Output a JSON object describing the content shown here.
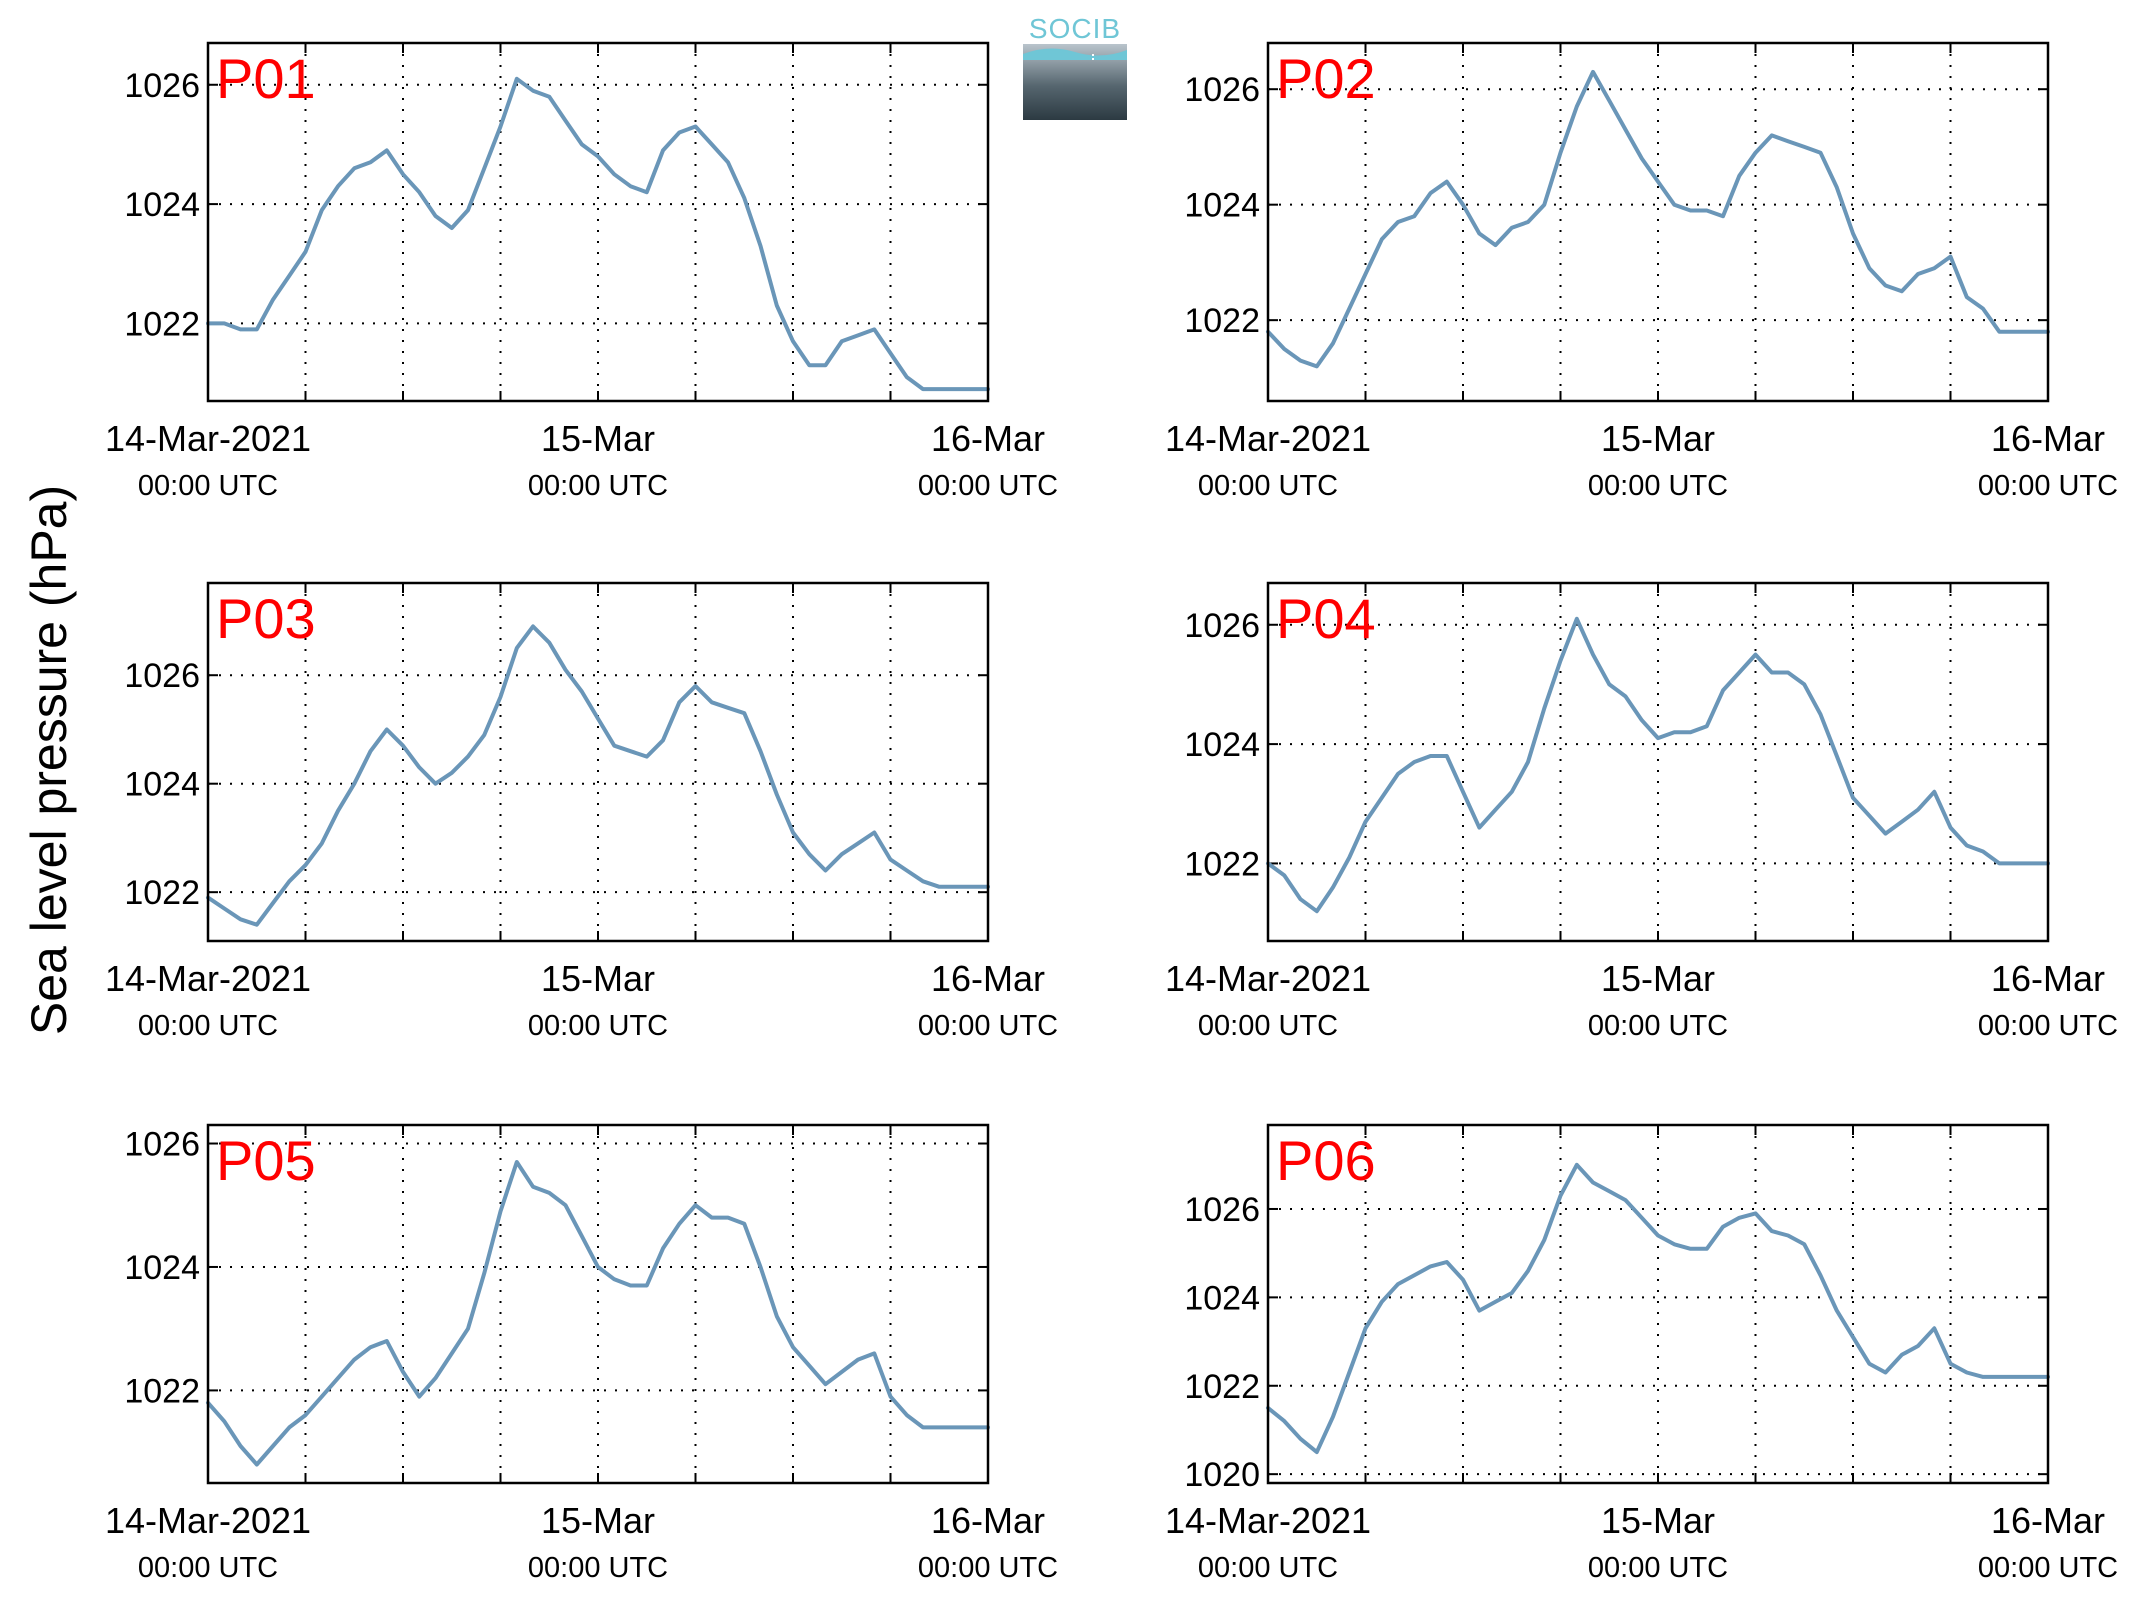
{
  "figure": {
    "ylabel": "Sea level pressure (hPa)",
    "logo_text": "SOCIB"
  },
  "chart_data": [
    {
      "type": "line",
      "panel_label": "P01",
      "x_ticks": [
        {
          "top": "14-Mar-2021",
          "bottom": "00:00 UTC"
        },
        {
          "top": "15-Mar",
          "bottom": "00:00 UTC"
        },
        {
          "top": "16-Mar",
          "bottom": "00:00 UTC"
        }
      ],
      "yticks": [
        1022,
        1024,
        1026
      ],
      "xlim": [
        0,
        48
      ],
      "ylim": [
        1020.7,
        1026.7
      ],
      "grid": true,
      "series": [
        {
          "color": "#6a96b8",
          "x": [
            0,
            1,
            2,
            3,
            4,
            5,
            6,
            7,
            8,
            9,
            10,
            11,
            12,
            13,
            14,
            15,
            16,
            17,
            18,
            19,
            20,
            21,
            22,
            23,
            24,
            25,
            26,
            27,
            28,
            29,
            30,
            31,
            32,
            33,
            34,
            35,
            36,
            37,
            38,
            39,
            40,
            41,
            42,
            43,
            44,
            45,
            46,
            47,
            48
          ],
          "y": [
            1022.0,
            1022.0,
            1021.9,
            1021.9,
            1022.4,
            1022.8,
            1023.2,
            1023.9,
            1024.3,
            1024.6,
            1024.7,
            1024.9,
            1024.5,
            1024.2,
            1023.8,
            1023.6,
            1023.9,
            1024.6,
            1025.3,
            1026.1,
            1025.9,
            1025.8,
            1025.4,
            1025.0,
            1024.8,
            1024.5,
            1024.3,
            1024.2,
            1024.9,
            1025.2,
            1025.3,
            1025.0,
            1024.7,
            1024.1,
            1023.3,
            1022.3,
            1021.7,
            1021.3,
            1021.3,
            1021.7,
            1021.8,
            1021.9,
            1021.5,
            1021.1,
            1020.9,
            1020.9,
            1020.9,
            1020.9,
            1020.9
          ]
        }
      ]
    },
    {
      "type": "line",
      "panel_label": "P02",
      "x_ticks": [
        {
          "top": "14-Mar-2021",
          "bottom": "00:00 UTC"
        },
        {
          "top": "15-Mar",
          "bottom": "00:00 UTC"
        },
        {
          "top": "16-Mar",
          "bottom": "00:00 UTC"
        }
      ],
      "yticks": [
        1022,
        1024,
        1026
      ],
      "xlim": [
        0,
        48
      ],
      "ylim": [
        1020.6,
        1026.8
      ],
      "grid": true,
      "series": [
        {
          "color": "#6a96b8",
          "x": [
            0,
            1,
            2,
            3,
            4,
            5,
            6,
            7,
            8,
            9,
            10,
            11,
            12,
            13,
            14,
            15,
            16,
            17,
            18,
            19,
            20,
            21,
            22,
            23,
            24,
            25,
            26,
            27,
            28,
            29,
            30,
            31,
            32,
            33,
            34,
            35,
            36,
            37,
            38,
            39,
            40,
            41,
            42,
            43,
            44,
            45,
            46,
            47,
            48
          ],
          "y": [
            1021.8,
            1021.5,
            1021.3,
            1021.2,
            1021.6,
            1022.2,
            1022.8,
            1023.4,
            1023.7,
            1023.8,
            1024.2,
            1024.4,
            1024.0,
            1023.5,
            1023.3,
            1023.6,
            1023.7,
            1024.0,
            1024.9,
            1025.7,
            1026.3,
            1025.8,
            1025.3,
            1024.8,
            1024.4,
            1024.0,
            1023.9,
            1023.9,
            1023.8,
            1024.5,
            1024.9,
            1025.2,
            1025.1,
            1025.0,
            1024.9,
            1024.3,
            1023.5,
            1022.9,
            1022.6,
            1022.5,
            1022.8,
            1022.9,
            1023.1,
            1022.4,
            1022.2,
            1021.8,
            1021.8,
            1021.8,
            1021.8
          ]
        }
      ]
    },
    {
      "type": "line",
      "panel_label": "P03",
      "x_ticks": [
        {
          "top": "14-Mar-2021",
          "bottom": "00:00 UTC"
        },
        {
          "top": "15-Mar",
          "bottom": "00:00 UTC"
        },
        {
          "top": "16-Mar",
          "bottom": "00:00 UTC"
        }
      ],
      "yticks": [
        1022,
        1024,
        1026
      ],
      "xlim": [
        0,
        48
      ],
      "ylim": [
        1021.1,
        1027.7
      ],
      "grid": true,
      "series": [
        {
          "color": "#6a96b8",
          "x": [
            0,
            1,
            2,
            3,
            4,
            5,
            6,
            7,
            8,
            9,
            10,
            11,
            12,
            13,
            14,
            15,
            16,
            17,
            18,
            19,
            20,
            21,
            22,
            23,
            24,
            25,
            26,
            27,
            28,
            29,
            30,
            31,
            32,
            33,
            34,
            35,
            36,
            37,
            38,
            39,
            40,
            41,
            42,
            43,
            44,
            45,
            46,
            47,
            48
          ],
          "y": [
            1021.9,
            1021.7,
            1021.5,
            1021.4,
            1021.8,
            1022.2,
            1022.5,
            1022.9,
            1023.5,
            1024.0,
            1024.6,
            1025.0,
            1024.7,
            1024.3,
            1024.0,
            1024.2,
            1024.5,
            1024.9,
            1025.6,
            1026.5,
            1026.9,
            1026.6,
            1026.1,
            1025.7,
            1025.2,
            1024.7,
            1024.6,
            1024.5,
            1024.8,
            1025.5,
            1025.8,
            1025.5,
            1025.4,
            1025.3,
            1024.6,
            1023.8,
            1023.1,
            1022.7,
            1022.4,
            1022.7,
            1022.9,
            1023.1,
            1022.6,
            1022.4,
            1022.2,
            1022.1,
            1022.1,
            1022.1,
            1022.1
          ]
        }
      ]
    },
    {
      "type": "line",
      "panel_label": "P04",
      "x_ticks": [
        {
          "top": "14-Mar-2021",
          "bottom": "00:00 UTC"
        },
        {
          "top": "15-Mar",
          "bottom": "00:00 UTC"
        },
        {
          "top": "16-Mar",
          "bottom": "00:00 UTC"
        }
      ],
      "yticks": [
        1022,
        1024,
        1026
      ],
      "xlim": [
        0,
        48
      ],
      "ylim": [
        1020.7,
        1026.7
      ],
      "grid": true,
      "series": [
        {
          "color": "#6a96b8",
          "x": [
            0,
            1,
            2,
            3,
            4,
            5,
            6,
            7,
            8,
            9,
            10,
            11,
            12,
            13,
            14,
            15,
            16,
            17,
            18,
            19,
            20,
            21,
            22,
            23,
            24,
            25,
            26,
            27,
            28,
            29,
            30,
            31,
            32,
            33,
            34,
            35,
            36,
            37,
            38,
            39,
            40,
            41,
            42,
            43,
            44,
            45,
            46,
            47,
            48
          ],
          "y": [
            1022.0,
            1021.8,
            1021.4,
            1021.2,
            1021.6,
            1022.1,
            1022.7,
            1023.1,
            1023.5,
            1023.7,
            1023.8,
            1023.8,
            1023.2,
            1022.6,
            1022.9,
            1023.2,
            1023.7,
            1024.6,
            1025.4,
            1026.1,
            1025.5,
            1025.0,
            1024.8,
            1024.4,
            1024.1,
            1024.2,
            1024.2,
            1024.3,
            1024.9,
            1025.2,
            1025.5,
            1025.2,
            1025.2,
            1025.0,
            1024.5,
            1023.8,
            1023.1,
            1022.8,
            1022.5,
            1022.7,
            1022.9,
            1023.2,
            1022.6,
            1022.3,
            1022.2,
            1022.0,
            1022.0,
            1022.0,
            1022.0
          ]
        }
      ]
    },
    {
      "type": "line",
      "panel_label": "P05",
      "x_ticks": [
        {
          "top": "14-Mar-2021",
          "bottom": "00:00 UTC"
        },
        {
          "top": "15-Mar",
          "bottom": "00:00 UTC"
        },
        {
          "top": "16-Mar",
          "bottom": "00:00 UTC"
        }
      ],
      "yticks": [
        1022,
        1024,
        1026
      ],
      "xlim": [
        0,
        48
      ],
      "ylim": [
        1020.5,
        1026.3
      ],
      "grid": true,
      "series": [
        {
          "color": "#6a96b8",
          "x": [
            0,
            1,
            2,
            3,
            4,
            5,
            6,
            7,
            8,
            9,
            10,
            11,
            12,
            13,
            14,
            15,
            16,
            17,
            18,
            19,
            20,
            21,
            22,
            23,
            24,
            25,
            26,
            27,
            28,
            29,
            30,
            31,
            32,
            33,
            34,
            35,
            36,
            37,
            38,
            39,
            40,
            41,
            42,
            43,
            44,
            45,
            46,
            47,
            48
          ],
          "y": [
            1021.8,
            1021.5,
            1021.1,
            1020.8,
            1021.1,
            1021.4,
            1021.6,
            1021.9,
            1022.2,
            1022.5,
            1022.7,
            1022.8,
            1022.3,
            1021.9,
            1022.2,
            1022.6,
            1023.0,
            1023.9,
            1024.9,
            1025.7,
            1025.3,
            1025.2,
            1025.0,
            1024.5,
            1024.0,
            1023.8,
            1023.7,
            1023.7,
            1024.3,
            1024.7,
            1025.0,
            1024.8,
            1024.8,
            1024.7,
            1024.0,
            1023.2,
            1022.7,
            1022.4,
            1022.1,
            1022.3,
            1022.5,
            1022.6,
            1021.9,
            1021.6,
            1021.4,
            1021.4,
            1021.4,
            1021.4,
            1021.4
          ]
        }
      ]
    },
    {
      "type": "line",
      "panel_label": "P06",
      "x_ticks": [
        {
          "top": "14-Mar-2021",
          "bottom": "00:00 UTC"
        },
        {
          "top": "15-Mar",
          "bottom": "00:00 UTC"
        },
        {
          "top": "16-Mar",
          "bottom": "00:00 UTC"
        }
      ],
      "yticks": [
        1020,
        1022,
        1024,
        1026
      ],
      "xlim": [
        0,
        48
      ],
      "ylim": [
        1019.8,
        1027.9
      ],
      "grid": true,
      "series": [
        {
          "color": "#6a96b8",
          "x": [
            0,
            1,
            2,
            3,
            4,
            5,
            6,
            7,
            8,
            9,
            10,
            11,
            12,
            13,
            14,
            15,
            16,
            17,
            18,
            19,
            20,
            21,
            22,
            23,
            24,
            25,
            26,
            27,
            28,
            29,
            30,
            31,
            32,
            33,
            34,
            35,
            36,
            37,
            38,
            39,
            40,
            41,
            42,
            43,
            44,
            45,
            46,
            47,
            48
          ],
          "y": [
            1021.5,
            1021.2,
            1020.8,
            1020.5,
            1021.3,
            1022.3,
            1023.3,
            1023.9,
            1024.3,
            1024.5,
            1024.7,
            1024.8,
            1024.4,
            1023.7,
            1023.9,
            1024.1,
            1024.6,
            1025.3,
            1026.3,
            1027.0,
            1026.6,
            1026.4,
            1026.2,
            1025.8,
            1025.4,
            1025.2,
            1025.1,
            1025.1,
            1025.6,
            1025.8,
            1025.9,
            1025.5,
            1025.4,
            1025.2,
            1024.5,
            1023.7,
            1023.1,
            1022.5,
            1022.3,
            1022.7,
            1022.9,
            1023.3,
            1022.5,
            1022.3,
            1022.2,
            1022.2,
            1022.2,
            1022.2,
            1022.2
          ]
        }
      ]
    }
  ]
}
